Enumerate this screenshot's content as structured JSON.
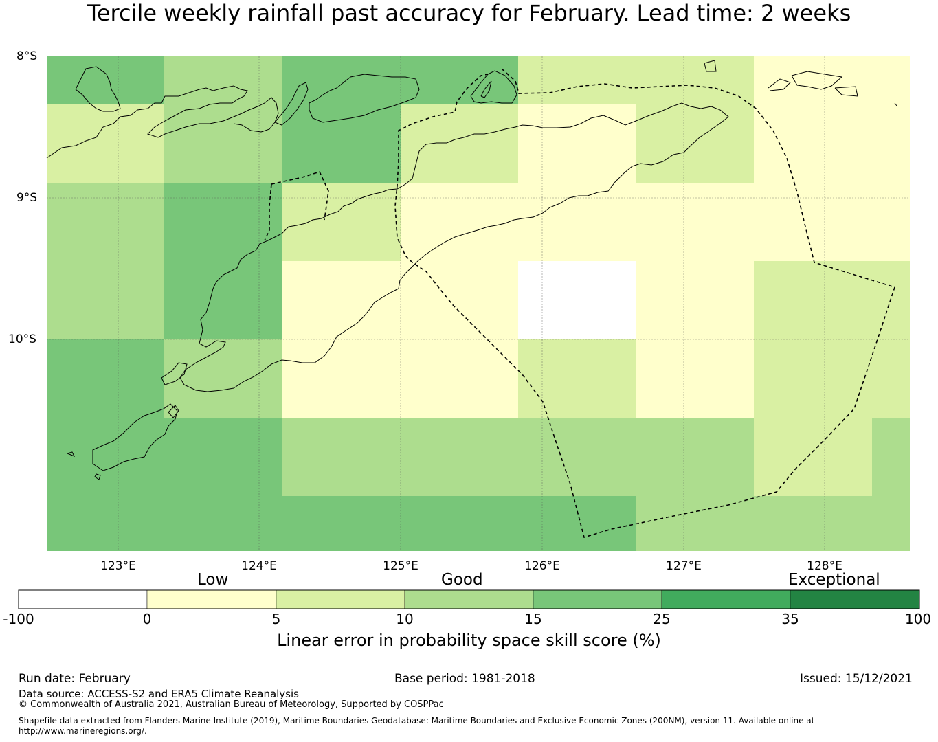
{
  "title": "Tercile weekly rainfall past accuracy for February. Lead time: 2 weeks",
  "map": {
    "lat_labels": [
      "8°S",
      "9°S",
      "10°S"
    ],
    "lon_labels": [
      "123°E",
      "124°E",
      "125°E",
      "126°E",
      "127°E",
      "128°E"
    ],
    "colors": {
      "nodata": "#ffffff",
      "c0_5": "#ffffcc",
      "c5_10": "#d9f0a3",
      "c10_15": "#addd8e",
      "c15_25": "#78c679",
      "c25_35": "#41ab5d",
      "c35_100": "#238443"
    },
    "grid": [
      [
        "c15_25",
        "c10_15",
        "c15_25",
        "c15_25",
        "c5_10",
        "c5_10",
        "c0_5",
        "c0_5"
      ],
      [
        "c5_10",
        "c10_15",
        "c15_25",
        "c5_10",
        "c0_5",
        "c5_10",
        "c0_5",
        "c0_5"
      ],
      [
        "c10_15",
        "c15_25",
        "c5_10",
        "c0_5",
        "c0_5",
        "c0_5",
        "c0_5",
        "c0_5"
      ],
      [
        "c10_15",
        "c15_25",
        "c0_5",
        "c0_5",
        "nodata",
        "c0_5",
        "c5_10",
        "c5_10"
      ],
      [
        "c15_25",
        "c10_15",
        "c0_5",
        "c0_5",
        "c5_10",
        "c0_5",
        "c5_10",
        "c5_10"
      ],
      [
        "c15_25",
        "c15_25",
        "c10_15",
        "c10_15",
        "c10_15",
        "c10_15",
        "c5_10",
        "c10_15"
      ],
      [
        "c15_25",
        "c15_25",
        "c15_25",
        "c15_25",
        "c15_25",
        "c10_15",
        "c10_15",
        "c10_15"
      ]
    ]
  },
  "colorbar": {
    "category_labels": [
      "Low",
      "Good",
      "Exceptional"
    ],
    "ticks": [
      "-100",
      "0",
      "5",
      "10",
      "15",
      "25",
      "35",
      "100"
    ],
    "colors": [
      "#ffffff",
      "#ffffcc",
      "#d9f0a3",
      "#addd8e",
      "#78c679",
      "#41ab5d",
      "#238443"
    ],
    "title": "Linear error in probability space skill score (%)"
  },
  "footer": {
    "run_date": "Run date: February",
    "base_period": "Base period: 1981-2018",
    "issued": "Issued: 15/12/2021",
    "data_source": "Data source: ACCESS-S2 and ERA5 Climate Reanalysis",
    "copyright": "© Commonwealth of Australia 2021, Australian Bureau of Meteorology, Supported by COSPPac",
    "shapefile_line1": "Shapefile data extracted from Flanders Marine Institute (2019), Maritime Boundaries Geodatabase: Maritime Boundaries and Exclusive Economic Zones (200NM), version 11. Available online at",
    "shapefile_line2": "http://www.marineregions.org/."
  }
}
